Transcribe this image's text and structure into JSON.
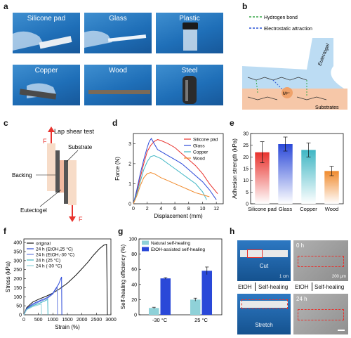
{
  "panel_letters": {
    "a": "a",
    "b": "b",
    "c": "c",
    "d": "d",
    "e": "e",
    "f": "f",
    "g": "g",
    "h": "h"
  },
  "panel_a": {
    "photos": [
      "Silicone pad",
      "Glass",
      "Plastic",
      "Copper",
      "Wood",
      "Steel"
    ]
  },
  "panel_b": {
    "legend": [
      {
        "label": "Hydrogen bond",
        "color": "#3aa84a"
      },
      {
        "label": "Electrostatic attraction",
        "color": "#2b55d6"
      }
    ],
    "eutectogel_label": "Eutectogel",
    "substrates_label": "Substrates",
    "ion_label": "Mⁿ⁺"
  },
  "panel_c": {
    "title": "Lap shear test",
    "force_label": "F",
    "force_label_bottom": "F",
    "backing": "Backing",
    "substrate": "Substrate",
    "eutectogel": "Eutectogel"
  },
  "panel_d": {
    "chart_data": {
      "type": "line",
      "xlabel": "Displacement (mm)",
      "ylabel": "Force (N)",
      "xlim": [
        0,
        13
      ],
      "ylim": [
        0,
        3.5
      ],
      "xticks": [
        0,
        2,
        4,
        6,
        8,
        10,
        12
      ],
      "yticks": [
        0,
        1,
        2,
        3
      ],
      "legend_position": "top-right",
      "series": [
        {
          "name": "Silicone pad",
          "color": "#e8322d",
          "x": [
            0,
            0.5,
            1,
            1.5,
            2,
            2.5,
            3,
            3.5,
            4,
            5,
            6,
            7,
            8,
            9,
            10,
            11,
            12.2
          ],
          "y": [
            0,
            0.6,
            1.3,
            2.0,
            2.6,
            2.9,
            3.1,
            3.2,
            3.15,
            3.0,
            2.8,
            2.5,
            2.2,
            1.9,
            1.5,
            1.0,
            0.5
          ]
        },
        {
          "name": "Glass",
          "color": "#2a48d8",
          "x": [
            0,
            0.5,
            1,
            1.5,
            2,
            2.3,
            2.6,
            3,
            3.5,
            4,
            5,
            6,
            7,
            8,
            9,
            10,
            11,
            12
          ],
          "y": [
            0,
            0.7,
            1.5,
            2.2,
            2.8,
            3.1,
            3.25,
            3.0,
            2.7,
            2.6,
            2.4,
            2.2,
            2.0,
            1.7,
            1.4,
            1.1,
            0.7,
            0.2
          ]
        },
        {
          "name": "Copper",
          "color": "#3fb6c4",
          "x": [
            0,
            0.5,
            1,
            1.5,
            2,
            2.5,
            3,
            4,
            5,
            6,
            7,
            8,
            9,
            10,
            10.6
          ],
          "y": [
            0,
            0.5,
            1.1,
            1.7,
            2.1,
            2.35,
            2.4,
            2.25,
            2.0,
            1.75,
            1.5,
            1.25,
            1.0,
            0.6,
            0.2
          ]
        },
        {
          "name": "Wood",
          "color": "#f08a2c",
          "x": [
            0,
            0.5,
            1,
            1.5,
            2,
            2.5,
            3,
            4,
            5,
            6,
            7,
            8,
            9,
            10,
            11
          ],
          "y": [
            0,
            0.4,
            0.9,
            1.3,
            1.5,
            1.55,
            1.5,
            1.3,
            1.15,
            1.0,
            0.85,
            0.7,
            0.55,
            0.45,
            0.35
          ]
        }
      ]
    }
  },
  "panel_e": {
    "chart_data": {
      "type": "bar",
      "categories": [
        "Silicone pad",
        "Glass",
        "Copper",
        "Wood"
      ],
      "values": [
        22,
        25.5,
        23,
        14
      ],
      "errors": [
        4.5,
        3,
        3,
        2
      ],
      "colors": [
        "#e8322d",
        "#2a48d8",
        "#3fb6c4",
        "#f08a2c"
      ],
      "ylabel": "Adhesion strength (kPa)",
      "ylim": [
        0,
        30
      ],
      "yticks": [
        0,
        5,
        10,
        15,
        20,
        25,
        30
      ]
    }
  },
  "panel_f": {
    "chart_data": {
      "type": "line",
      "xlabel": "Strain (%)",
      "ylabel": "Stress (kPa)",
      "xlim": [
        0,
        3000
      ],
      "ylim": [
        0,
        420
      ],
      "xticks": [
        0,
        500,
        1000,
        1500,
        2000,
        2500,
        3000
      ],
      "yticks": [
        0,
        50,
        100,
        150,
        200,
        250,
        300,
        350,
        400
      ],
      "legend_position": "top-left",
      "series": [
        {
          "name": "original",
          "color": "#111111",
          "x": [
            0,
            100,
            300,
            500,
            800,
            1000,
            1200,
            1500,
            1800,
            2000,
            2200,
            2400,
            2600,
            2750,
            2850,
            2880
          ],
          "y": [
            0,
            40,
            70,
            85,
            105,
            120,
            140,
            175,
            220,
            255,
            290,
            330,
            365,
            385,
            390,
            0
          ]
        },
        {
          "name": "24 h (EtOH,25 °C)",
          "color": "#2a48d8",
          "x": [
            0,
            100,
            300,
            500,
            800,
            1000,
            1200,
            1300,
            1310
          ],
          "y": [
            0,
            35,
            60,
            75,
            95,
            120,
            170,
            210,
            0
          ]
        },
        {
          "name": "24 h (EtOH,-30 °C)",
          "color": "#6a7fe0",
          "x": [
            0,
            100,
            300,
            500,
            800,
            1000,
            1150,
            1160
          ],
          "y": [
            0,
            32,
            55,
            70,
            90,
            115,
            150,
            0
          ]
        },
        {
          "name": "24 h (25 °C)",
          "color": "#3fb6c4",
          "x": [
            0,
            100,
            300,
            500,
            700,
            820,
            830
          ],
          "y": [
            0,
            30,
            50,
            62,
            75,
            85,
            0
          ]
        },
        {
          "name": "24 h (-30 °C)",
          "color": "#8fd1d8",
          "x": [
            0,
            100,
            300,
            500,
            600,
            610
          ],
          "y": [
            0,
            28,
            45,
            55,
            60,
            0
          ]
        }
      ]
    }
  },
  "panel_g": {
    "chart_data": {
      "type": "bar",
      "categories": [
        "-30 °C",
        "25 °C"
      ],
      "series": [
        {
          "name": "Natural self-healing",
          "values": [
            9,
            20
          ],
          "errors": [
            1,
            2
          ],
          "color": "#8fd1d8"
        },
        {
          "name": "EtOH-assisted self-healing",
          "values": [
            48,
            58
          ],
          "errors": [
            1,
            5
          ],
          "color": "#2a48d8"
        }
      ],
      "ylabel": "Self-healing efficiency (%)",
      "ylim": [
        0,
        100
      ],
      "yticks": [
        0,
        20,
        40,
        60,
        80,
        100
      ],
      "legend_position": "top"
    }
  },
  "panel_h": {
    "cut": "Cut",
    "scale_1cm": "1 cm",
    "etoh_left": "EtOH",
    "self_healing_left": "Self-healing",
    "stretch": "Stretch",
    "time_0h": "0 h",
    "scale_200um": "200 μm",
    "etoh_right": "EtOH",
    "self_healing_right": "Self-healing",
    "time_24h": "24 h"
  }
}
